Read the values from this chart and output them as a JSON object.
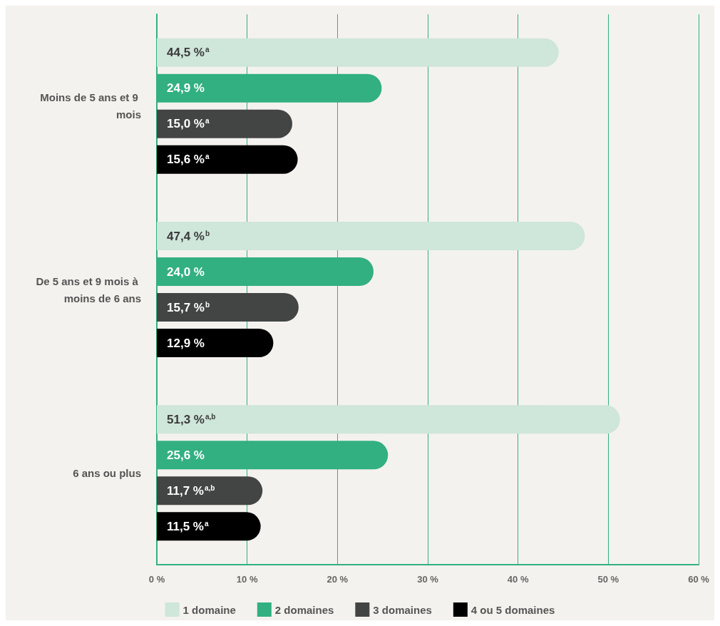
{
  "chart_data": {
    "type": "bar",
    "orientation": "horizontal",
    "categories": [
      "Moins de 5 ans et 9 mois",
      "De 5 ans et 9 mois à moins de 6 ans",
      "6 ans ou plus"
    ],
    "series": [
      {
        "name": "1 domaine",
        "color": "#cfe6da",
        "values": [
          44.5,
          47.4,
          51.3
        ],
        "value_labels": [
          "44,5 %$^{a}$",
          "47,4 %$^{b}$",
          "51,3 %$^{a,b}$"
        ]
      },
      {
        "name": "2 domaines",
        "color": "#32b082",
        "values": [
          24.9,
          24.0,
          25.6
        ],
        "value_labels": [
          "24,9 %",
          "24,0 %",
          "25,6 %"
        ]
      },
      {
        "name": "3 domaines",
        "color": "#434545",
        "values": [
          15.0,
          15.7,
          11.7
        ],
        "value_labels": [
          "15,0 %$^{a}$",
          "15,7 %$^{b}$",
          "11,7 %$^{a,b}$"
        ]
      },
      {
        "name": "4 ou 5 domaines",
        "color": "#000000",
        "values": [
          15.6,
          12.9,
          11.5
        ],
        "value_labels": [
          "15,6 %$^{a}$",
          "12,9 %",
          "11,5 %$^{a}$"
        ]
      }
    ],
    "xlim": [
      0,
      60
    ],
    "xticks": [
      {
        "value": 0,
        "label": "0 %"
      },
      {
        "value": 10,
        "label": "10 %"
      },
      {
        "value": 20,
        "label": "20 %"
      },
      {
        "value": 30,
        "label": "30 %"
      },
      {
        "value": 40,
        "label": "40 %"
      },
      {
        "value": 50,
        "label": "50 %"
      },
      {
        "value": 60,
        "label": "60 %"
      }
    ],
    "grid": "x",
    "legend": "bottom"
  }
}
